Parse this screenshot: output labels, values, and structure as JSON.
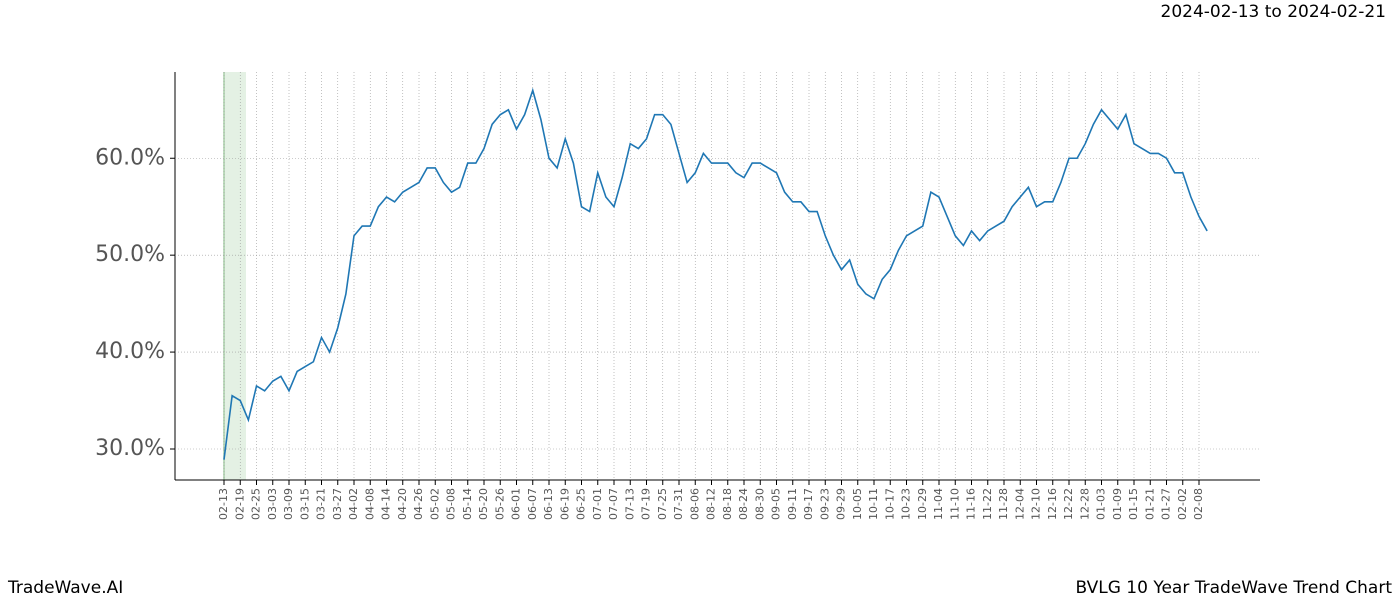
{
  "header": {
    "date_range": "2024-02-13 to 2024-02-21"
  },
  "footer": {
    "brand": "TradeWave.AI",
    "chart_name": "BVLG 10 Year TradeWave Trend Chart"
  },
  "chart_data": {
    "type": "line",
    "color": "#1f77b4",
    "grid": true,
    "categories": [
      "02-13",
      null,
      "02-19",
      null,
      "02-25",
      null,
      "03-03",
      null,
      "03-09",
      null,
      "03-15",
      null,
      "03-21",
      null,
      "03-27",
      null,
      "04-02",
      null,
      "04-08",
      null,
      "04-14",
      null,
      "04-20",
      null,
      "04-26",
      null,
      "05-02",
      null,
      "05-08",
      null,
      "05-14",
      null,
      "05-20",
      null,
      "05-26",
      null,
      "06-01",
      null,
      "06-07",
      null,
      "06-13",
      null,
      "06-19",
      null,
      "06-25",
      null,
      "07-01",
      null,
      "07-07",
      null,
      "07-13",
      null,
      "07-19",
      null,
      "07-25",
      null,
      "07-31",
      null,
      "08-06",
      null,
      "08-12",
      null,
      "08-18",
      null,
      "08-24",
      null,
      "08-30",
      null,
      "09-05",
      null,
      "09-11",
      null,
      "09-17",
      null,
      "09-23",
      null,
      "09-29",
      null,
      "10-05",
      null,
      "10-11",
      null,
      "10-17",
      null,
      "10-23",
      null,
      "10-29",
      null,
      "11-04",
      null,
      "11-10",
      null,
      "11-16",
      null,
      "11-22",
      null,
      "11-28",
      null,
      "12-04",
      null,
      "12-10",
      null,
      "12-16",
      null,
      "12-22",
      null,
      "12-28",
      null,
      "01-03",
      null,
      "01-09",
      null,
      "01-15",
      null,
      "01-21",
      null,
      "01-27",
      null,
      "02-02",
      null,
      "02-08",
      null
    ],
    "values": [
      28.9,
      35.5,
      35,
      33,
      36.5,
      36,
      37,
      37.5,
      36,
      38,
      38.5,
      39,
      41.5,
      40,
      42.5,
      46,
      52,
      53,
      53,
      55,
      56,
      55.5,
      56.5,
      57,
      57.5,
      59,
      59,
      57.5,
      56.5,
      57,
      59.5,
      59.5,
      61,
      63.5,
      64.5,
      65,
      63,
      64.5,
      67,
      64,
      60,
      59,
      62,
      59.5,
      55,
      54.5,
      58.5,
      56,
      55,
      58,
      61.5,
      61,
      62,
      64.5,
      64.5,
      63.5,
      60.5,
      57.5,
      58.5,
      60.5,
      59.5,
      59.5,
      59.5,
      58.5,
      58,
      59.5,
      59.5,
      59,
      58.5,
      56.5,
      55.5,
      55.5,
      54.5,
      54.5,
      52,
      50,
      48.5,
      49.5,
      47,
      46,
      45.5,
      47.5,
      48.5,
      50.5,
      52,
      52.5,
      53,
      56.5,
      56,
      54,
      52,
      51,
      52.5,
      51.5,
      52.5,
      53,
      53.5,
      55,
      56,
      57,
      55,
      55.5,
      55.5,
      57.5,
      60,
      60,
      61.5,
      63.5,
      65,
      64,
      63,
      64.5,
      61.5,
      61,
      60.5,
      60.5,
      60,
      58.5,
      58.5,
      56,
      54,
      52.5
    ],
    "ylim": [
      26.8,
      68.9
    ],
    "yticks": [
      {
        "value": 30,
        "label": "30.0%"
      },
      {
        "value": 40,
        "label": "40.0%"
      },
      {
        "value": 50,
        "label": "50.0%"
      },
      {
        "value": 60,
        "label": "60.0%"
      }
    ]
  }
}
